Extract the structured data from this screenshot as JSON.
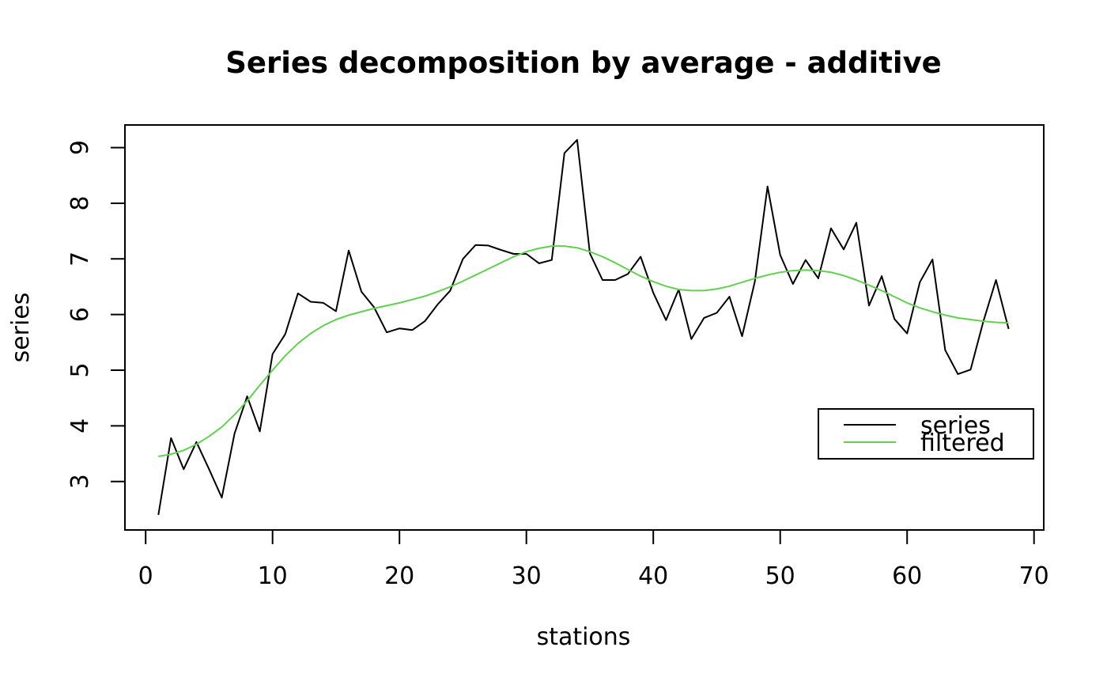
{
  "chart_data": {
    "type": "line",
    "title": "Series decomposition by average - additive",
    "xlabel": "stations",
    "ylabel": "series",
    "xlim": [
      0,
      70
    ],
    "ylim": [
      2.3,
      9.4
    ],
    "x_ticks": [
      0,
      10,
      20,
      30,
      40,
      50,
      60,
      70
    ],
    "y_ticks": [
      3,
      4,
      5,
      6,
      7,
      8,
      9
    ],
    "grid": false,
    "legend": {
      "placement": "bottom-right",
      "entries": [
        "series",
        "filtered"
      ]
    },
    "x": [
      1,
      2,
      3,
      4,
      5,
      6,
      7,
      8,
      9,
      10,
      11,
      12,
      13,
      14,
      15,
      16,
      17,
      18,
      19,
      20,
      21,
      22,
      23,
      24,
      25,
      26,
      27,
      28,
      29,
      30,
      31,
      32,
      33,
      34,
      35,
      36,
      37,
      38,
      39,
      40,
      41,
      42,
      43,
      44,
      45,
      46,
      47,
      48,
      49,
      50,
      51,
      52,
      53,
      54,
      55,
      56,
      57,
      58,
      59,
      60,
      61,
      62,
      63,
      64,
      65,
      66,
      67,
      68
    ],
    "series": [
      {
        "name": "series",
        "color": "#000000",
        "values": [
          2.4,
          3.78,
          3.22,
          3.71,
          3.22,
          2.71,
          3.86,
          4.53,
          3.9,
          5.29,
          5.65,
          6.38,
          6.23,
          6.21,
          6.06,
          7.15,
          6.41,
          6.13,
          5.68,
          5.75,
          5.72,
          5.88,
          6.18,
          6.43,
          7.0,
          7.25,
          7.24,
          7.16,
          7.09,
          7.09,
          6.92,
          6.98,
          8.9,
          9.14,
          7.1,
          6.62,
          6.62,
          6.73,
          7.04,
          6.39,
          5.9,
          6.45,
          5.56,
          5.94,
          6.03,
          6.32,
          5.61,
          6.59,
          8.3,
          7.07,
          6.55,
          6.98,
          6.65,
          7.55,
          7.17,
          7.65,
          6.16,
          6.69,
          5.92,
          5.66,
          6.58,
          6.99,
          5.36,
          4.93,
          5.01,
          5.87,
          6.62,
          5.74
        ]
      },
      {
        "name": "filtered",
        "color": "#61d04f",
        "values": [
          3.45,
          3.49,
          3.56,
          3.67,
          3.81,
          3.98,
          4.2,
          4.45,
          4.73,
          5.0,
          5.26,
          5.48,
          5.66,
          5.8,
          5.91,
          5.99,
          6.05,
          6.11,
          6.16,
          6.21,
          6.27,
          6.33,
          6.41,
          6.5,
          6.6,
          6.71,
          6.82,
          6.93,
          7.04,
          7.13,
          7.19,
          7.23,
          7.23,
          7.2,
          7.13,
          7.04,
          6.93,
          6.81,
          6.69,
          6.59,
          6.51,
          6.45,
          6.43,
          6.43,
          6.46,
          6.51,
          6.58,
          6.65,
          6.71,
          6.76,
          6.79,
          6.8,
          6.79,
          6.76,
          6.7,
          6.62,
          6.53,
          6.43,
          6.32,
          6.21,
          6.12,
          6.05,
          5.99,
          5.94,
          5.91,
          5.88,
          5.86,
          5.85
        ]
      }
    ]
  }
}
